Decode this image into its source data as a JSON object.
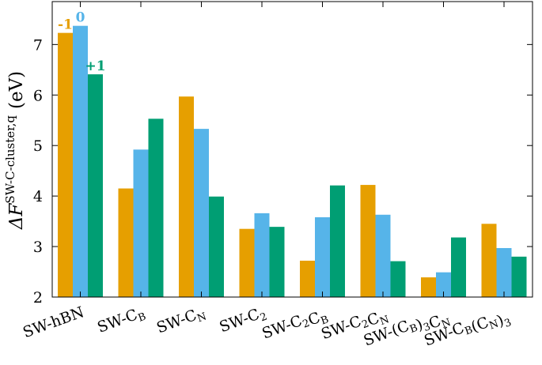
{
  "chart_data": {
    "type": "bar",
    "ylabel_main": "ΔF",
    "ylabel_sup": "SW-C-cluster,q",
    "ylabel_unit": "(eV)",
    "xlabel": "",
    "title": "",
    "ylim": [
      2,
      7.85
    ],
    "yticks": [
      "2",
      "3",
      "4",
      "5",
      "6",
      "7"
    ],
    "categories": [
      {
        "base": "SW-hBN"
      },
      {
        "base": "SW-C",
        "sub": "B"
      },
      {
        "base": "SW-C",
        "sub": "N"
      },
      {
        "base": "SW-C",
        "sub": "2"
      },
      {
        "base": "SW-C",
        "sub": "2",
        "base2": "C",
        "sub2": "B"
      },
      {
        "base": "SW-C",
        "sub": "2",
        "base2": "C",
        "sub2": "N"
      },
      {
        "base": "SW-(C",
        "sub": "B",
        "base2": ")",
        "sub2": "3",
        "base3": "C",
        "sub3": "N"
      },
      {
        "base": "SW-C",
        "sub": "B",
        "base2": "(C",
        "sub2": "N",
        "base3": ")",
        "sub3": "3"
      }
    ],
    "series": [
      {
        "name": "-1",
        "color": "#E69F00",
        "values": [
          7.23,
          4.15,
          5.97,
          3.35,
          2.72,
          4.22,
          2.39,
          3.45
        ]
      },
      {
        "name": "0",
        "color": "#56B4E9",
        "values": [
          7.37,
          4.92,
          5.33,
          3.66,
          3.58,
          3.63,
          2.49,
          2.97
        ]
      },
      {
        "name": "+1",
        "color": "#009E73",
        "values": [
          6.41,
          5.53,
          3.99,
          3.39,
          4.21,
          2.71,
          3.18,
          2.8
        ]
      }
    ],
    "grid": false
  }
}
